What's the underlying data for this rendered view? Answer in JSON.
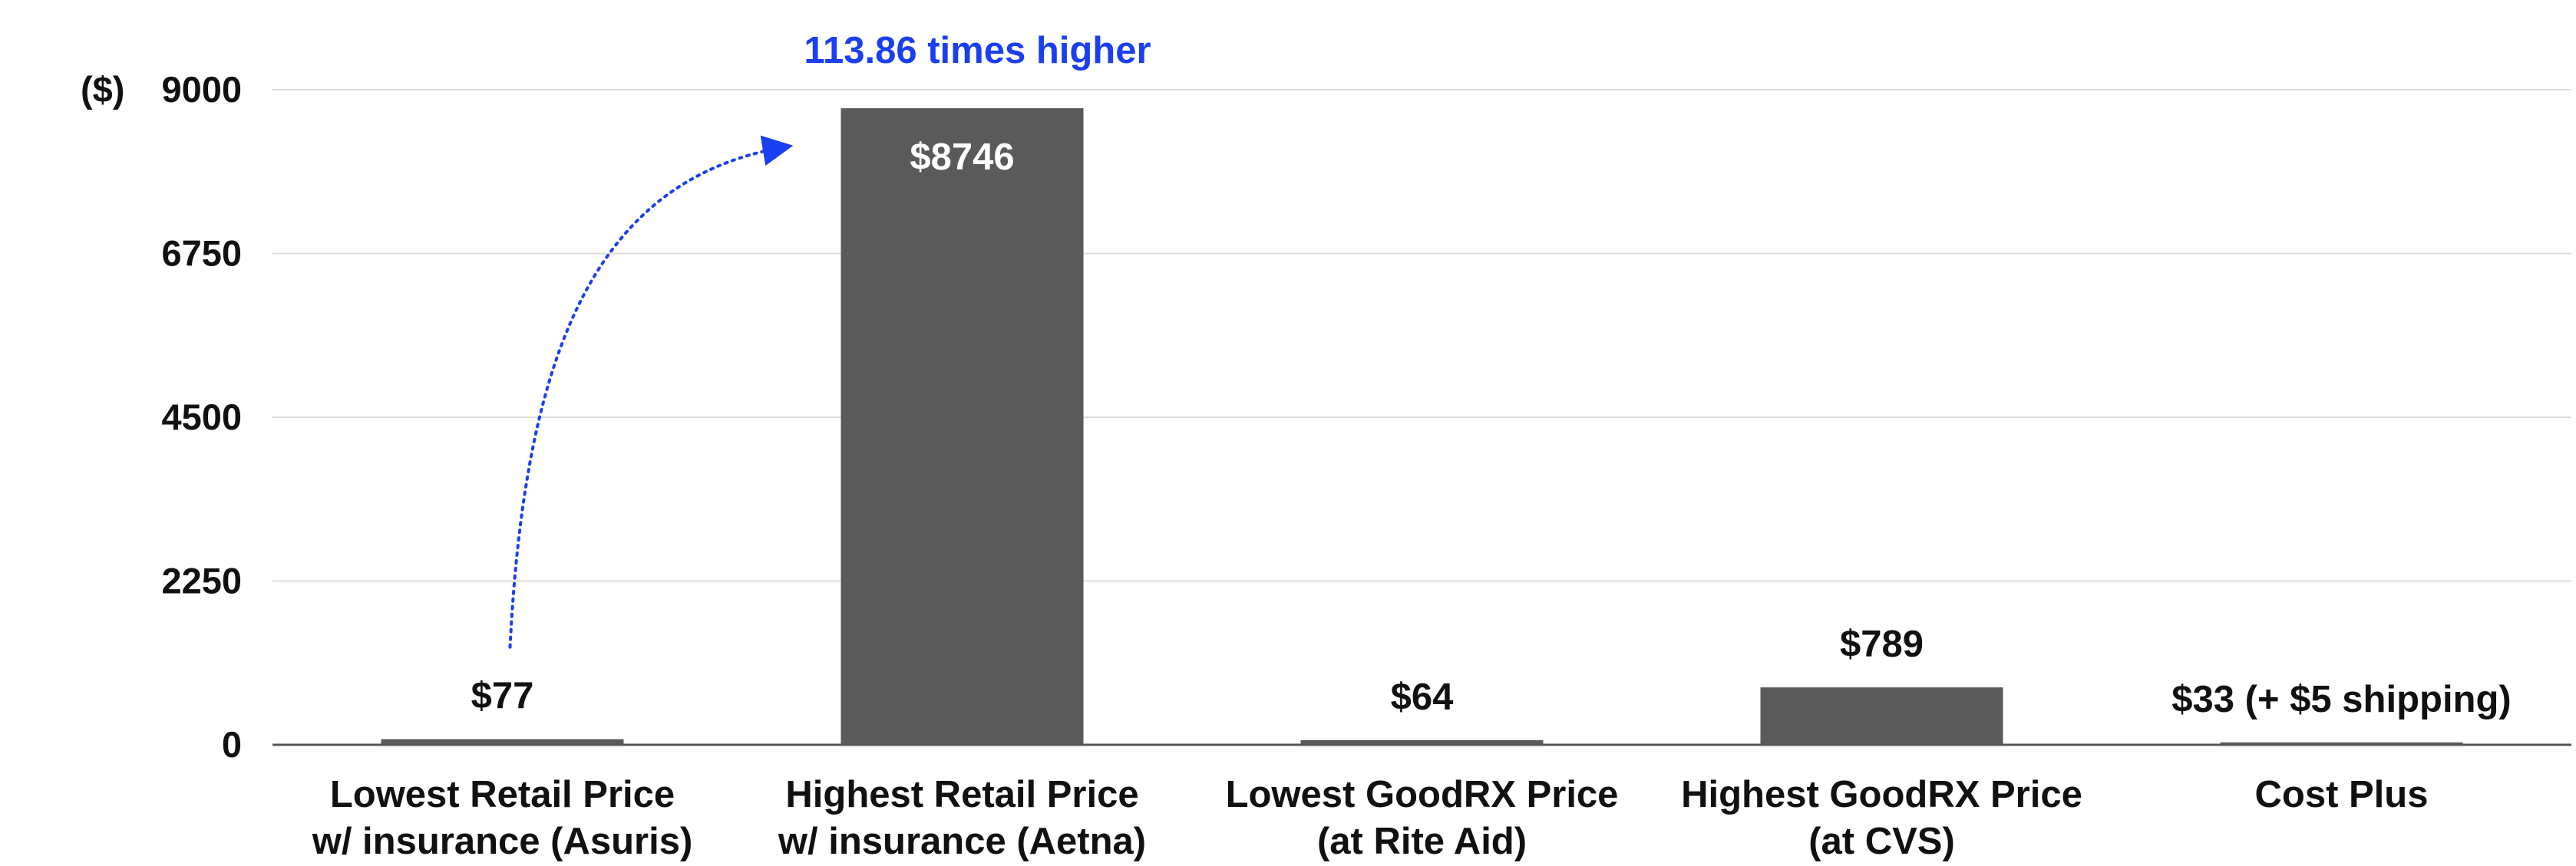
{
  "chart_data": {
    "type": "bar",
    "unit_label": "($)",
    "categories": [
      [
        "Lowest Retail Price",
        "w/ insurance (Asuris)"
      ],
      [
        "Highest Retail Price",
        "w/ insurance (Aetna)"
      ],
      [
        "Lowest GoodRX Price",
        "(at Rite Aid)"
      ],
      [
        "Highest GoodRX Price",
        "(at CVS)"
      ],
      [
        "Cost Plus"
      ]
    ],
    "values": [
      77,
      8746,
      64,
      789,
      33
    ],
    "data_labels": [
      "$77",
      "$8746",
      "$64",
      "$789",
      "$33 (+ $5 shipping)"
    ],
    "ylim": [
      0,
      9000
    ],
    "yticks": [
      0,
      2250,
      4500,
      6750,
      9000
    ],
    "grid": true,
    "annotation": {
      "text": "113.86 times higher",
      "from_category": 0,
      "to_category": 1
    },
    "colors": {
      "bar": "#5a5a5a",
      "grid": "#dcdcdc",
      "axis": "#555555",
      "annotation": "#1a3ff0"
    }
  }
}
